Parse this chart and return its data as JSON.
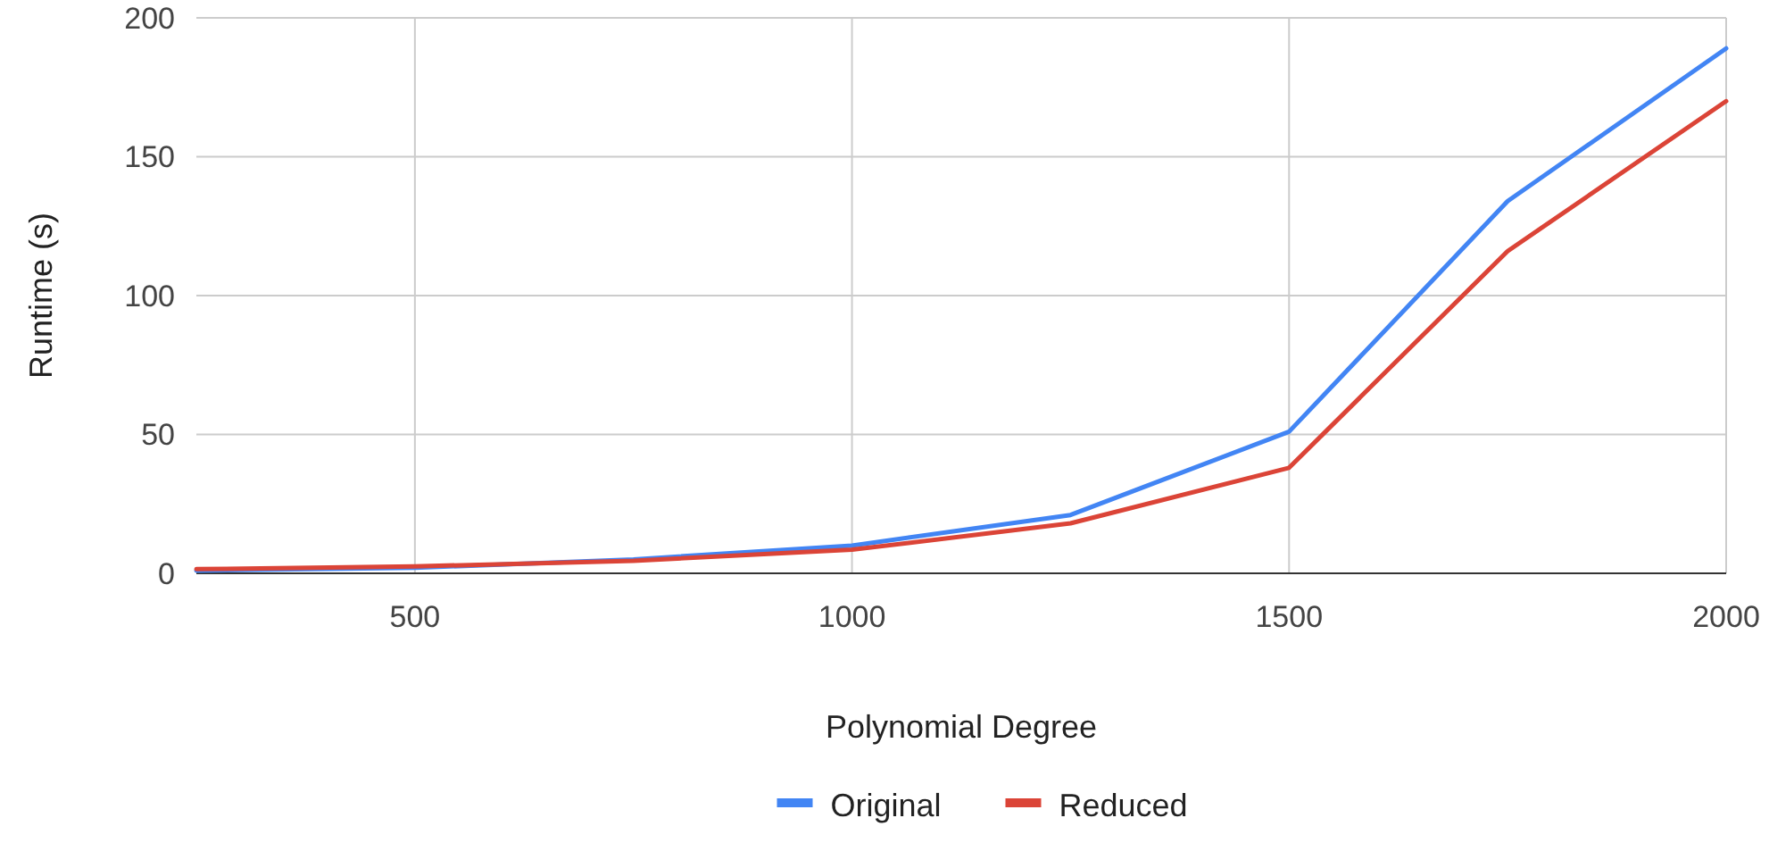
{
  "chart_data": {
    "type": "line",
    "xlabel": "Polynomial Degree",
    "ylabel": "Runtime (s)",
    "x": [
      250,
      500,
      750,
      1000,
      1250,
      1500,
      1750,
      2000
    ],
    "series": [
      {
        "name": "Original",
        "color": "#4285f4",
        "values": [
          1,
          2,
          5,
          10,
          21,
          51,
          134,
          189
        ]
      },
      {
        "name": "Reduced",
        "color": "#db4437",
        "values": [
          1.5,
          2.5,
          4.5,
          8.5,
          18,
          38,
          116,
          170
        ]
      }
    ],
    "xlim": [
      250,
      2000
    ],
    "xticks": [
      500,
      1000,
      1500,
      2000
    ],
    "ylim": [
      0,
      200
    ],
    "yticks": [
      0,
      50,
      100,
      150,
      200
    ],
    "grid": true,
    "legend": "bottom",
    "marker": "none",
    "line_style": "solid"
  }
}
